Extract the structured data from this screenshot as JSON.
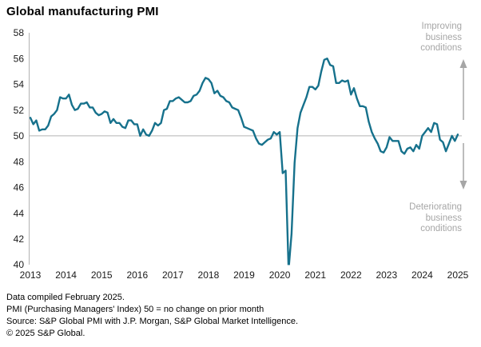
{
  "title": "Global manufacturing PMI",
  "annotations": {
    "improving": "Improving business conditions",
    "deteriorating": "Deteriorating business conditions"
  },
  "footer": {
    "line1": "Data compiled February 2025.",
    "line2": "PMI (Purchasing Managers' Index) 50 = no change on prior month",
    "line3": "Source: S&P Global  PMI with J.P. Morgan, S&P Global Market Intelligence.",
    "line4": "© 2025 S&P Global."
  },
  "colors": {
    "line": "#16718c",
    "axis": "#b3b3b3",
    "reference_line": "#b3b3b3",
    "annotation_gray": "#a6a6a6",
    "text": "#000000"
  },
  "chart_data": {
    "type": "line",
    "title": "Global manufacturing PMI",
    "xlabel": "",
    "ylabel": "",
    "ylim": [
      40,
      58
    ],
    "y_ticks": [
      40,
      42,
      44,
      46,
      48,
      50,
      52,
      54,
      56,
      58
    ],
    "x_tick_labels": [
      "2013",
      "2014",
      "2015",
      "2016",
      "2017",
      "2018",
      "2019",
      "2020",
      "2021",
      "2022",
      "2023",
      "2024",
      "2025"
    ],
    "reference_line": 50,
    "reference_line_meaning": "50 = no change on prior month",
    "grid": "horizontal reference line at 50 only",
    "legend_position": "none",
    "series": [
      {
        "name": "Global manufacturing PMI",
        "frequency": "monthly",
        "start": "2013-01",
        "end": "2025-01",
        "values": [
          51.4,
          50.9,
          51.2,
          50.4,
          50.5,
          50.5,
          50.8,
          51.5,
          51.7,
          52.0,
          53.0,
          52.9,
          52.9,
          53.2,
          52.4,
          52.0,
          52.1,
          52.5,
          52.5,
          52.6,
          52.2,
          52.2,
          51.8,
          51.6,
          51.7,
          51.9,
          51.8,
          51.0,
          51.3,
          51.0,
          51.0,
          50.7,
          50.6,
          51.2,
          51.2,
          50.9,
          50.9,
          50.0,
          50.5,
          50.1,
          50.0,
          50.4,
          51.0,
          50.8,
          51.0,
          52.0,
          52.1,
          52.7,
          52.7,
          52.9,
          53.0,
          52.8,
          52.6,
          52.6,
          52.7,
          53.1,
          53.2,
          53.5,
          54.1,
          54.5,
          54.4,
          54.1,
          53.3,
          53.5,
          53.1,
          53.0,
          52.7,
          52.6,
          52.2,
          52.1,
          52.0,
          51.4,
          50.7,
          50.6,
          50.5,
          50.4,
          49.8,
          49.4,
          49.3,
          49.5,
          49.7,
          49.8,
          50.3,
          50.1,
          50.3,
          47.1,
          47.3,
          39.6,
          42.4,
          47.9,
          50.6,
          51.8,
          52.4,
          53.0,
          53.8,
          53.8,
          53.6,
          53.9,
          55.0,
          55.9,
          56.0,
          55.5,
          55.4,
          54.1,
          54.1,
          54.3,
          54.2,
          54.3,
          53.2,
          53.7,
          52.9,
          52.3,
          52.3,
          52.2,
          51.1,
          50.3,
          49.8,
          49.4,
          48.8,
          48.7,
          49.1,
          49.9,
          49.6,
          49.6,
          49.6,
          48.8,
          48.6,
          49.0,
          49.1,
          48.8,
          49.3,
          49.0,
          50.0,
          50.3,
          50.6,
          50.3,
          51.0,
          50.9,
          49.7,
          49.5,
          48.8,
          49.4,
          50.0,
          49.6,
          50.1
        ]
      }
    ]
  }
}
